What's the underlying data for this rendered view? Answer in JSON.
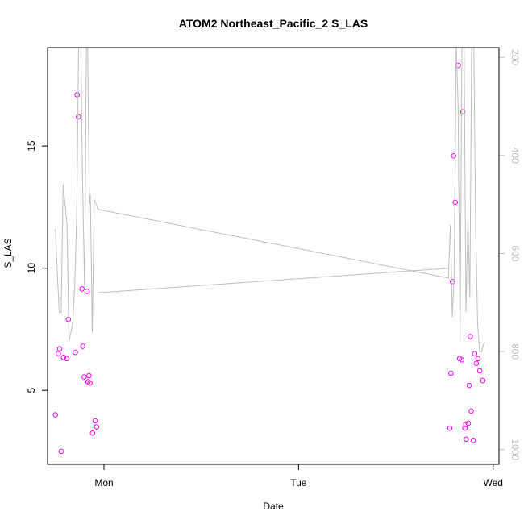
{
  "chart_data": {
    "type": "scatter",
    "title": "ATOM2 Northeast_Pacific_2 S_LAS",
    "xlabel": "Date",
    "ylabel": "S_LAS",
    "x_unit": "days",
    "xlim": [
      -0.29,
      2.03
    ],
    "ylim": [
      1.97,
      19.03
    ],
    "x_ticks": [
      {
        "value": 0,
        "label": "Mon"
      },
      {
        "value": 1,
        "label": "Tue"
      },
      {
        "value": 2,
        "label": "Wed"
      }
    ],
    "y_ticks": [
      5,
      10,
      15
    ],
    "secondary_axis": {
      "side": "right",
      "color": "#bebebe",
      "reversed": true,
      "ylim": [
        1030,
        180
      ],
      "ticks": [
        200,
        400,
        600,
        800,
        1000
      ]
    },
    "series": [
      {
        "kind": "points",
        "axis": "left",
        "color": "#ff00ff",
        "x": [
          -0.25,
          -0.235,
          -0.228,
          -0.221,
          -0.208,
          -0.192,
          -0.183,
          -0.147,
          -0.138,
          -0.131,
          -0.113,
          -0.109,
          -0.102,
          -0.087,
          -0.082,
          -0.077,
          -0.072,
          -0.059,
          -0.045,
          -0.038,
          1.777,
          1.783,
          1.79,
          1.797,
          1.805,
          1.82,
          1.828,
          1.838,
          1.844,
          1.855,
          1.859,
          1.862,
          1.872,
          1.877,
          1.882,
          1.887,
          1.898,
          1.905,
          1.913,
          1.922,
          1.931,
          1.947
        ],
        "y": [
          4.0,
          6.5,
          6.7,
          2.5,
          6.35,
          6.3,
          7.9,
          6.55,
          17.1,
          16.2,
          9.15,
          6.8,
          5.55,
          9.05,
          5.35,
          5.6,
          5.3,
          3.25,
          3.75,
          3.5,
          3.45,
          5.7,
          9.45,
          14.6,
          12.7,
          18.3,
          6.3,
          6.25,
          16.4,
          3.45,
          3.6,
          3.0,
          3.65,
          5.2,
          7.2,
          4.15,
          2.95,
          6.5,
          6.1,
          6.3,
          5.8,
          5.4
        ]
      },
      {
        "kind": "line",
        "axis": "right",
        "color": "#bebebe",
        "x": [
          -0.25,
          -0.24,
          -0.23,
          -0.22,
          -0.21,
          -0.2,
          -0.19,
          -0.18,
          -0.16,
          -0.15,
          -0.14,
          -0.13,
          -0.12,
          -0.11,
          -0.1,
          -0.09,
          -0.085,
          -0.075,
          -0.07,
          -0.06,
          -0.05,
          -0.04,
          -0.03,
          1.77,
          1.78,
          1.79,
          1.8,
          1.81,
          1.82,
          1.83,
          1.84,
          1.85,
          1.86,
          1.87,
          1.88,
          1.89,
          1.9,
          1.91,
          1.92,
          1.93,
          1.94,
          1.955
        ],
        "y": [
          550,
          640,
          720,
          720,
          460,
          500,
          540,
          780,
          740,
          660,
          520,
          160,
          150,
          450,
          670,
          150,
          150,
          500,
          480,
          760,
          490,
          500,
          510,
          650,
          540,
          730,
          640,
          170,
          300,
          780,
          150,
          150,
          720,
          530,
          690,
          150,
          150,
          540,
          740,
          800,
          800,
          780
        ]
      },
      {
        "kind": "line",
        "axis": "right",
        "color": "#bebebe",
        "x": [
          -0.03,
          1.77
        ],
        "y": [
          680,
          630
        ]
      }
    ]
  }
}
